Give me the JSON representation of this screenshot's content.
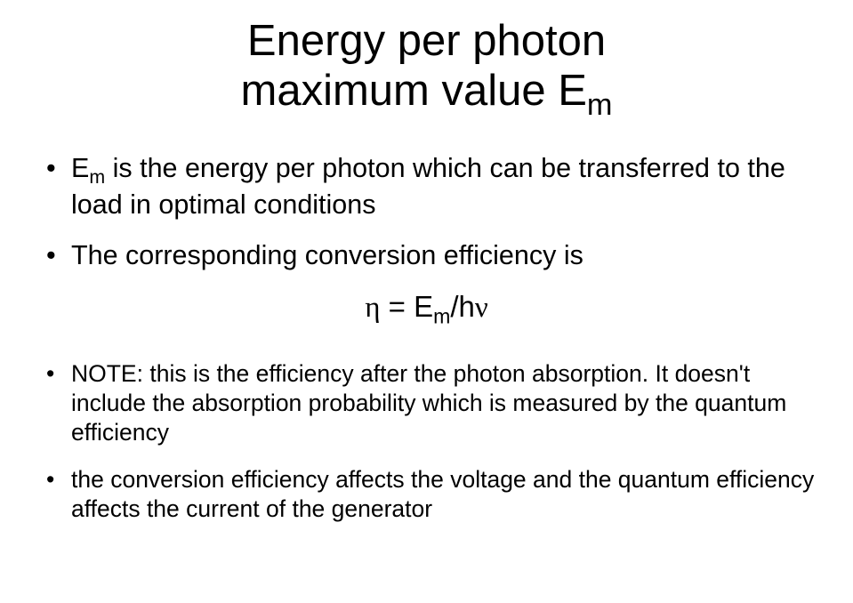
{
  "title_line1": "Energy per photon",
  "title_line2": "maximum value E",
  "title_sub": "m",
  "bullet1_a": "E",
  "bullet1_sub": "m",
  "bullet1_b": " is the energy per photon which can be transferred to the load in optimal conditions",
  "bullet2": "The corresponding conversion efficiency is",
  "formula_eta": "η",
  "formula_eq": " = E",
  "formula_sub": "m",
  "formula_hv": "/hν",
  "bullet3_a": "NOTE: this is the efficiency after the photon absorption. ",
  "bullet3_b": "It doesn't include the absorption probability which is measured by the quantum efficiency",
  "bullet4": "the conversion efficiency affects the voltage and the quantum efficiency affects the current of the generator",
  "colors": {
    "background": "#ffffff",
    "text": "#000000"
  },
  "font_sizes": {
    "title": 49,
    "body_large": 30.5,
    "body_small": 26.5,
    "formula": 33
  }
}
